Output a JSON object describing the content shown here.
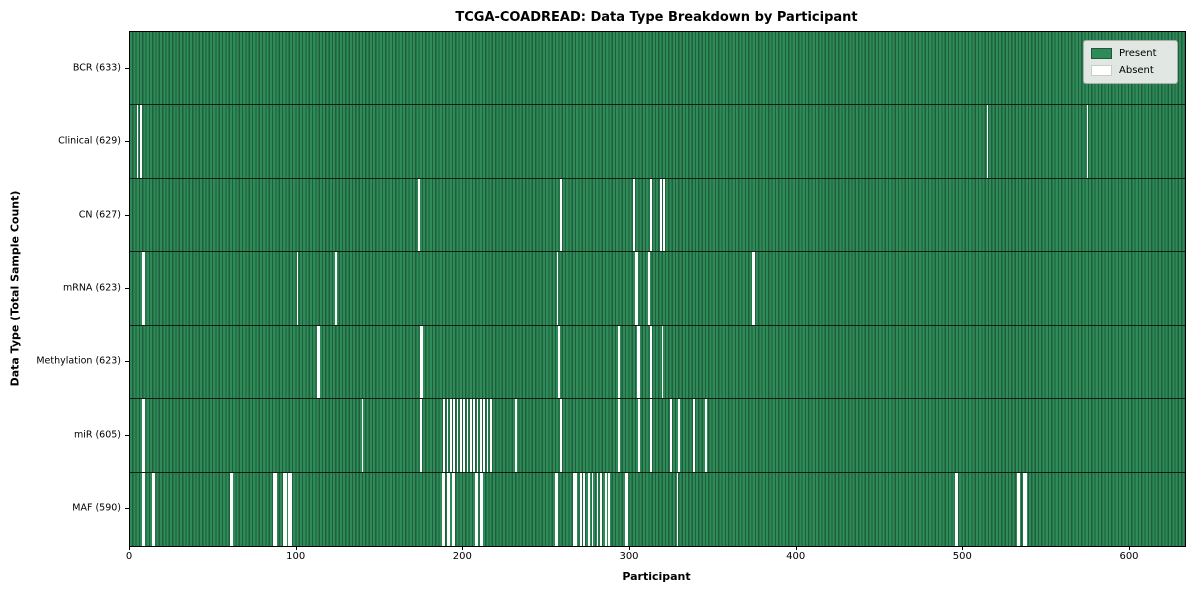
{
  "chart_data": {
    "type": "heatmap",
    "title": "TCGA-COADREAD: Data Type Breakdown by Participant",
    "xlabel": "Participant",
    "ylabel": "Data Type (Total Sample Count)",
    "n_participants": 633,
    "x_ticks": [
      0,
      100,
      200,
      300,
      400,
      500,
      600
    ],
    "legend_position": "upper right",
    "grid": false,
    "legend": [
      {
        "label": "Present",
        "color": "#2e8b57"
      },
      {
        "label": "Absent",
        "color": "#ffffff"
      }
    ],
    "colors": {
      "present": "#2e8b57",
      "present_edge": "#1f5f3d",
      "absent": "#ffffff",
      "row_separator": "#0a140c"
    },
    "rows": [
      {
        "label": "BCR (633)",
        "name": "BCR",
        "count": 633,
        "absent": []
      },
      {
        "label": "Clinical (629)",
        "name": "Clinical",
        "count": 629,
        "absent": [
          4,
          6,
          514,
          574
        ]
      },
      {
        "label": "CN (627)",
        "name": "CN",
        "count": 627,
        "absent": [
          173,
          258,
          302,
          312,
          318,
          320
        ]
      },
      {
        "label": "mRNA (623)",
        "name": "mRNA",
        "count": 623,
        "absent": [
          7,
          8,
          100,
          123,
          256,
          303,
          304,
          311,
          373,
          374
        ]
      },
      {
        "label": "Methylation (623)",
        "name": "Methylation",
        "count": 623,
        "absent": [
          112,
          113,
          174,
          175,
          257,
          293,
          304,
          305,
          312,
          319
        ]
      },
      {
        "label": "miR (605)",
        "name": "miR",
        "count": 605,
        "absent": [
          7,
          8,
          139,
          174,
          188,
          190,
          192,
          194,
          196,
          198,
          200,
          202,
          204,
          206,
          208,
          210,
          212,
          214,
          216,
          231,
          258,
          293,
          305,
          312,
          324,
          329,
          338,
          345
        ]
      },
      {
        "label": "MAF (590)",
        "name": "MAF",
        "count": 590,
        "absent": [
          7,
          8,
          13,
          14,
          60,
          61,
          86,
          87,
          92,
          93,
          95,
          96,
          187,
          188,
          190,
          191,
          193,
          194,
          207,
          208,
          210,
          211,
          255,
          256,
          266,
          267,
          270,
          272,
          275,
          277,
          280,
          282,
          285,
          287,
          297,
          298,
          328,
          495,
          496,
          532,
          533,
          536,
          537
        ]
      }
    ]
  }
}
